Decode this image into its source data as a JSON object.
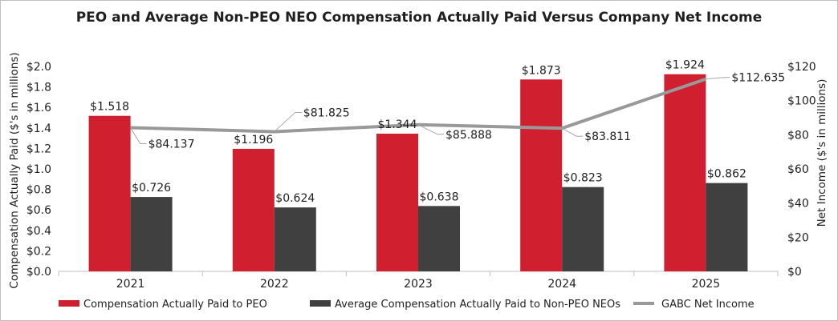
{
  "chart_data": {
    "type": "bar",
    "title": "PEO and Average Non-PEO NEO Compensation Actually Paid Versus Company Net Income",
    "categories": [
      "2021",
      "2022",
      "2023",
      "2024",
      "2025"
    ],
    "series": [
      {
        "name": "Compensation Actually Paid to PEO",
        "type": "bar",
        "axis": "left",
        "color": "#d01f2e",
        "values": [
          1.518,
          1.196,
          1.344,
          1.873,
          1.924
        ],
        "labels": [
          "$1.518",
          "$1.196",
          "$1.344",
          "$1.873",
          "$1.924"
        ]
      },
      {
        "name": "Average Compensation Actually Paid to Non-PEO NEOs",
        "type": "bar",
        "axis": "left",
        "color": "#404040",
        "values": [
          0.726,
          0.624,
          0.638,
          0.823,
          0.862
        ],
        "labels": [
          "$0.726",
          "$0.624",
          "$0.638",
          "$0.823",
          "$0.862"
        ]
      },
      {
        "name": "GABC Net Income",
        "type": "line",
        "axis": "right",
        "color": "#999999",
        "values": [
          84.137,
          81.825,
          85.888,
          83.811,
          112.635
        ],
        "labels": [
          "$84.137",
          "$81.825",
          "$85.888",
          "$83.811",
          "$112.635"
        ]
      }
    ],
    "y_left": {
      "label": "Compensation Actually Paid ($'s in millions)",
      "range": [
        0,
        2.0
      ],
      "ticks": [
        "$0.0",
        "$0.2",
        "$0.4",
        "$0.6",
        "$0.8",
        "$1.0",
        "$1.2",
        "$1.4",
        "$1.6",
        "$1.8",
        "$2.0"
      ]
    },
    "y_right": {
      "label": "Net Income ($'s in millions)",
      "range": [
        0,
        120
      ],
      "ticks": [
        "$0",
        "$20",
        "$40",
        "$60",
        "$80",
        "$100",
        "$120"
      ]
    },
    "legend": {
      "position": "bottom",
      "items": [
        "Compensation Actually Paid to PEO",
        "Average Compensation Actually Paid to Non-PEO NEOs",
        "GABC Net Income"
      ]
    }
  }
}
